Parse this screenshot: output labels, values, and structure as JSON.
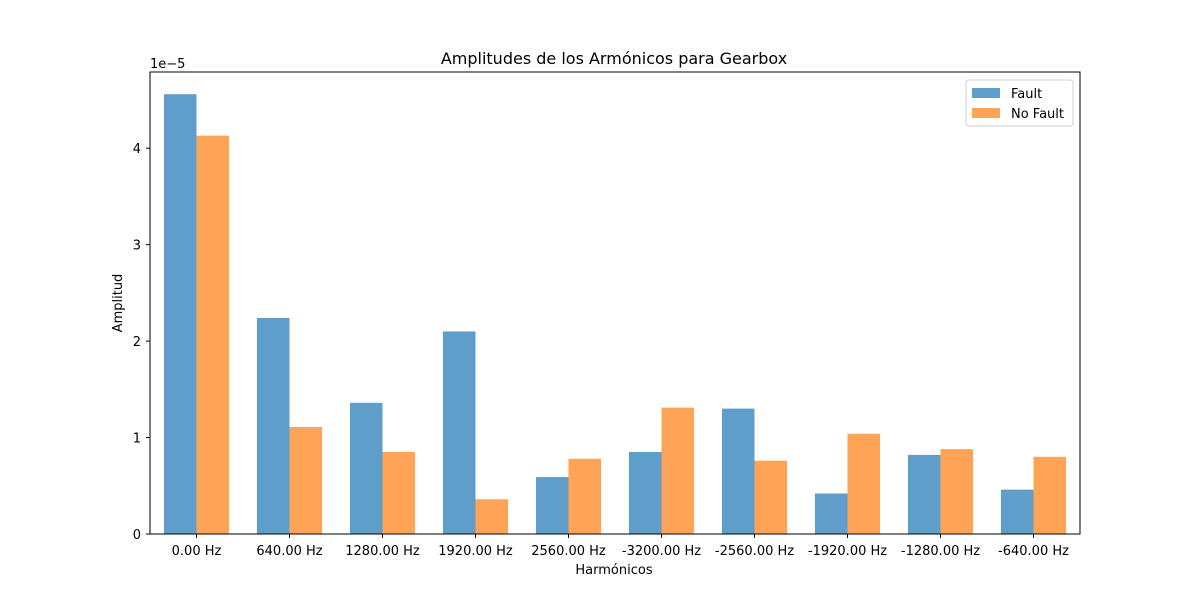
{
  "chart_data": {
    "type": "bar",
    "title": "Amplitudes de los Armónicos para Gearbox",
    "xlabel": "Harmónicos",
    "ylabel": "Amplitud",
    "y_scale_label": "1e−5",
    "categories": [
      "0.00 Hz",
      "640.00 Hz",
      "1280.00 Hz",
      "1920.00 Hz",
      "2560.00 Hz",
      "-3200.00 Hz",
      "-2560.00 Hz",
      "-1920.00 Hz",
      "-1280.00 Hz",
      "-640.00 Hz"
    ],
    "series": [
      {
        "name": "Fault",
        "color": "#5f9ecb",
        "values": [
          4.56,
          2.24,
          1.36,
          2.1,
          0.59,
          0.85,
          1.3,
          0.42,
          0.82,
          0.46
        ]
      },
      {
        "name": "No Fault",
        "color": "#ffa356",
        "values": [
          4.13,
          1.11,
          0.85,
          0.36,
          0.78,
          1.31,
          0.76,
          1.04,
          0.88,
          0.8
        ]
      }
    ],
    "yticks": [
      "0",
      "1",
      "2",
      "3",
      "4"
    ],
    "ylim": [
      0,
      4.79
    ],
    "grid": false,
    "legend_position": "top-right"
  }
}
